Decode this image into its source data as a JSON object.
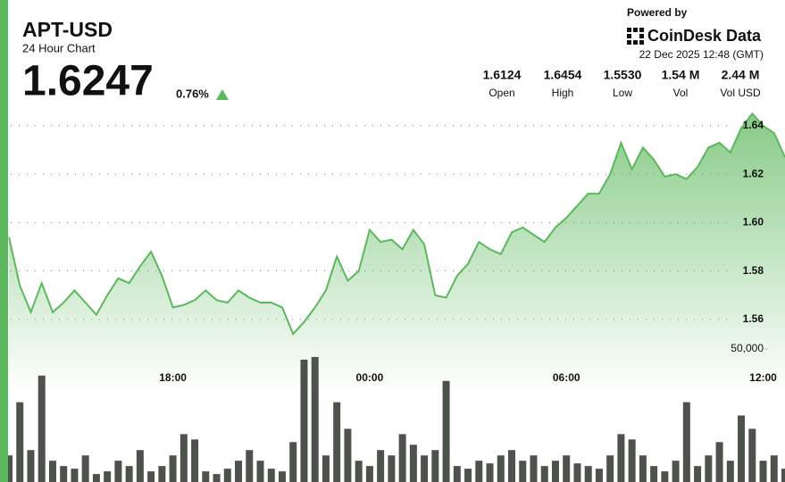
{
  "header": {
    "title": "APT-USD",
    "subtitle": "24 Hour Chart",
    "price": "1.6247",
    "change": "0.76%",
    "powered_by": "Powered by",
    "brand": "CoinDesk Data",
    "date": "22 Dec 2025 12:48 (GMT)"
  },
  "stats": [
    {
      "value": "1.6124",
      "label": "Open"
    },
    {
      "value": "1.6454",
      "label": "High"
    },
    {
      "value": "1.5530",
      "label": "Low"
    },
    {
      "value": "1.54 M",
      "label": "Vol"
    },
    {
      "value": "2.44 M",
      "label": "Vol USD"
    }
  ],
  "chart_data": {
    "type": "area",
    "categories": [
      null,
      null,
      null,
      null,
      null,
      null,
      null,
      null,
      null,
      null,
      null,
      null,
      null,
      null,
      null,
      "18:00",
      null,
      null,
      null,
      null,
      null,
      null,
      null,
      null,
      null,
      null,
      null,
      null,
      null,
      null,
      null,
      null,
      null,
      "00:00",
      null,
      null,
      null,
      null,
      null,
      null,
      null,
      null,
      null,
      null,
      null,
      null,
      null,
      null,
      null,
      null,
      null,
      "06:00",
      null,
      null,
      null,
      null,
      null,
      null,
      null,
      null,
      null,
      null,
      null,
      null,
      null,
      null,
      null,
      null,
      null,
      "12:00",
      null,
      null
    ],
    "series": [
      {
        "type": "area",
        "color": "#5cb85c",
        "values": [
          1.594,
          1.574,
          1.563,
          1.575,
          1.563,
          1.567,
          1.572,
          1.567,
          1.562,
          1.57,
          1.577,
          1.575,
          1.582,
          1.588,
          1.578,
          1.565,
          1.566,
          1.568,
          1.572,
          1.568,
          1.567,
          1.572,
          1.569,
          1.567,
          1.567,
          1.565,
          1.554,
          1.559,
          1.565,
          1.572,
          1.586,
          1.576,
          1.58,
          1.597,
          1.592,
          1.593,
          1.589,
          1.597,
          1.591,
          1.57,
          1.569,
          1.578,
          1.583,
          1.592,
          1.589,
          1.587,
          1.596,
          1.598,
          1.595,
          1.592,
          1.598,
          1.602,
          1.607,
          1.612,
          1.612,
          1.62,
          1.633,
          1.622,
          1.631,
          1.626,
          1.619,
          1.62,
          1.618,
          1.623,
          1.631,
          1.633,
          1.629,
          1.639,
          1.645,
          1.64,
          1.637,
          1.627
        ]
      },
      {
        "type": "bar",
        "axis": "y2",
        "color": "#4d524d",
        "values": [
          10000,
          30000,
          12000,
          40000,
          8000,
          6000,
          5000,
          10000,
          3000,
          4000,
          8000,
          6000,
          12000,
          4000,
          6000,
          10000,
          18000,
          16000,
          4000,
          3000,
          5000,
          8000,
          12000,
          8000,
          5000,
          4000,
          15000,
          46000,
          47000,
          10000,
          30000,
          20000,
          8000,
          6000,
          12000,
          10000,
          18000,
          14000,
          10000,
          12000,
          38000,
          6000,
          5000,
          8000,
          7000,
          10000,
          12000,
          8000,
          10000,
          6000,
          8000,
          10000,
          7000,
          6000,
          5000,
          10000,
          18000,
          16000,
          10000,
          6000,
          4000,
          8000,
          30000,
          6000,
          10000,
          15000,
          8000,
          25000,
          20000,
          8000,
          10000,
          5000
        ]
      }
    ],
    "ylim": [
      1.5445,
      1.6477
    ],
    "yticks": [
      1.56,
      1.58,
      {
        "value": 1.6,
        "label": "1.60"
      },
      1.62,
      1.64
    ],
    "y2lim": [
      0,
      50000
    ],
    "y2ticks": [
      {
        "value": 50000,
        "label": "50,000"
      }
    ],
    "grid": true
  }
}
